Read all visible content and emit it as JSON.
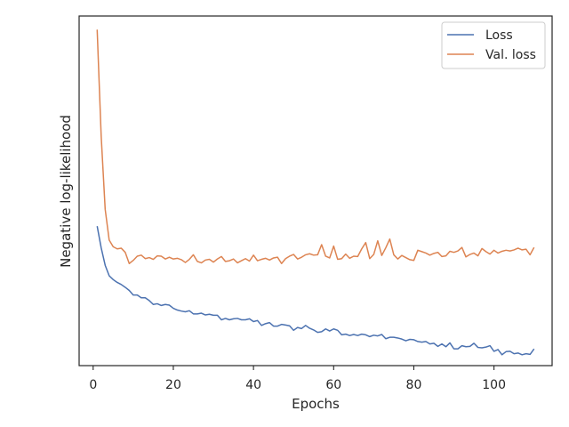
{
  "chart_data": {
    "type": "line",
    "title": "",
    "xlabel": "Epochs",
    "ylabel": "Negative log-likelihood",
    "xlim": [
      -3.5,
      114.5
    ],
    "ylim": [
      0,
      1.0
    ],
    "xticks": [
      0,
      20,
      40,
      60,
      80,
      100
    ],
    "y_tick_labels_shown": false,
    "grid": false,
    "legend_position": "top-right",
    "colors": {
      "Loss": "#4c72b0",
      "Val. loss": "#dd8452",
      "axes": "#262626"
    },
    "x": [
      1,
      2,
      3,
      4,
      5,
      6,
      7,
      8,
      9,
      10,
      11,
      12,
      13,
      14,
      15,
      16,
      17,
      18,
      19,
      20,
      21,
      22,
      23,
      24,
      25,
      26,
      27,
      28,
      29,
      30,
      31,
      32,
      33,
      34,
      35,
      36,
      37,
      38,
      39,
      40,
      41,
      42,
      43,
      44,
      45,
      46,
      47,
      48,
      49,
      50,
      51,
      52,
      53,
      54,
      55,
      56,
      57,
      58,
      59,
      60,
      61,
      62,
      63,
      64,
      65,
      66,
      67,
      68,
      69,
      70,
      71,
      72,
      73,
      74,
      75,
      76,
      77,
      78,
      79,
      80,
      81,
      82,
      83,
      84,
      85,
      86,
      87,
      88,
      89,
      90,
      91,
      92,
      93,
      94,
      95,
      96,
      97,
      98,
      99,
      100,
      101,
      102,
      103,
      104,
      105,
      106,
      107,
      108,
      109,
      110
    ],
    "series": [
      {
        "name": "Loss",
        "values": [
          0.399,
          0.337,
          0.287,
          0.257,
          0.246,
          0.238,
          0.232,
          0.224,
          0.215,
          0.202,
          0.202,
          0.194,
          0.194,
          0.186,
          0.175,
          0.177,
          0.172,
          0.175,
          0.173,
          0.164,
          0.159,
          0.156,
          0.154,
          0.157,
          0.148,
          0.148,
          0.15,
          0.145,
          0.147,
          0.144,
          0.144,
          0.131,
          0.135,
          0.131,
          0.134,
          0.135,
          0.131,
          0.131,
          0.134,
          0.126,
          0.129,
          0.115,
          0.12,
          0.123,
          0.113,
          0.113,
          0.118,
          0.116,
          0.114,
          0.101,
          0.109,
          0.106,
          0.115,
          0.107,
          0.102,
          0.095,
          0.097,
          0.105,
          0.099,
          0.105,
          0.101,
          0.088,
          0.09,
          0.086,
          0.089,
          0.086,
          0.09,
          0.088,
          0.083,
          0.087,
          0.085,
          0.089,
          0.077,
          0.081,
          0.081,
          0.079,
          0.076,
          0.071,
          0.075,
          0.074,
          0.069,
          0.067,
          0.069,
          0.062,
          0.064,
          0.055,
          0.062,
          0.054,
          0.065,
          0.048,
          0.048,
          0.057,
          0.054,
          0.055,
          0.064,
          0.052,
          0.051,
          0.053,
          0.057,
          0.041,
          0.046,
          0.031,
          0.04,
          0.041,
          0.034,
          0.036,
          0.031,
          0.034,
          0.032,
          0.048
        ]
      },
      {
        "name": "Val. loss",
        "values": [
          0.961,
          0.657,
          0.447,
          0.359,
          0.34,
          0.334,
          0.336,
          0.324,
          0.292,
          0.301,
          0.313,
          0.316,
          0.306,
          0.309,
          0.304,
          0.314,
          0.313,
          0.305,
          0.31,
          0.305,
          0.307,
          0.303,
          0.295,
          0.304,
          0.317,
          0.298,
          0.294,
          0.302,
          0.304,
          0.296,
          0.305,
          0.312,
          0.298,
          0.3,
          0.305,
          0.294,
          0.3,
          0.306,
          0.299,
          0.316,
          0.3,
          0.304,
          0.307,
          0.302,
          0.308,
          0.31,
          0.292,
          0.306,
          0.313,
          0.318,
          0.305,
          0.31,
          0.317,
          0.32,
          0.316,
          0.317,
          0.346,
          0.313,
          0.308,
          0.342,
          0.304,
          0.306,
          0.319,
          0.307,
          0.313,
          0.312,
          0.334,
          0.352,
          0.306,
          0.318,
          0.357,
          0.315,
          0.337,
          0.362,
          0.317,
          0.305,
          0.315,
          0.309,
          0.303,
          0.301,
          0.33,
          0.326,
          0.322,
          0.316,
          0.321,
          0.324,
          0.312,
          0.314,
          0.327,
          0.324,
          0.328,
          0.338,
          0.311,
          0.318,
          0.322,
          0.314,
          0.335,
          0.326,
          0.319,
          0.33,
          0.322,
          0.327,
          0.33,
          0.328,
          0.331,
          0.336,
          0.331,
          0.333,
          0.317,
          0.338
        ]
      }
    ]
  }
}
